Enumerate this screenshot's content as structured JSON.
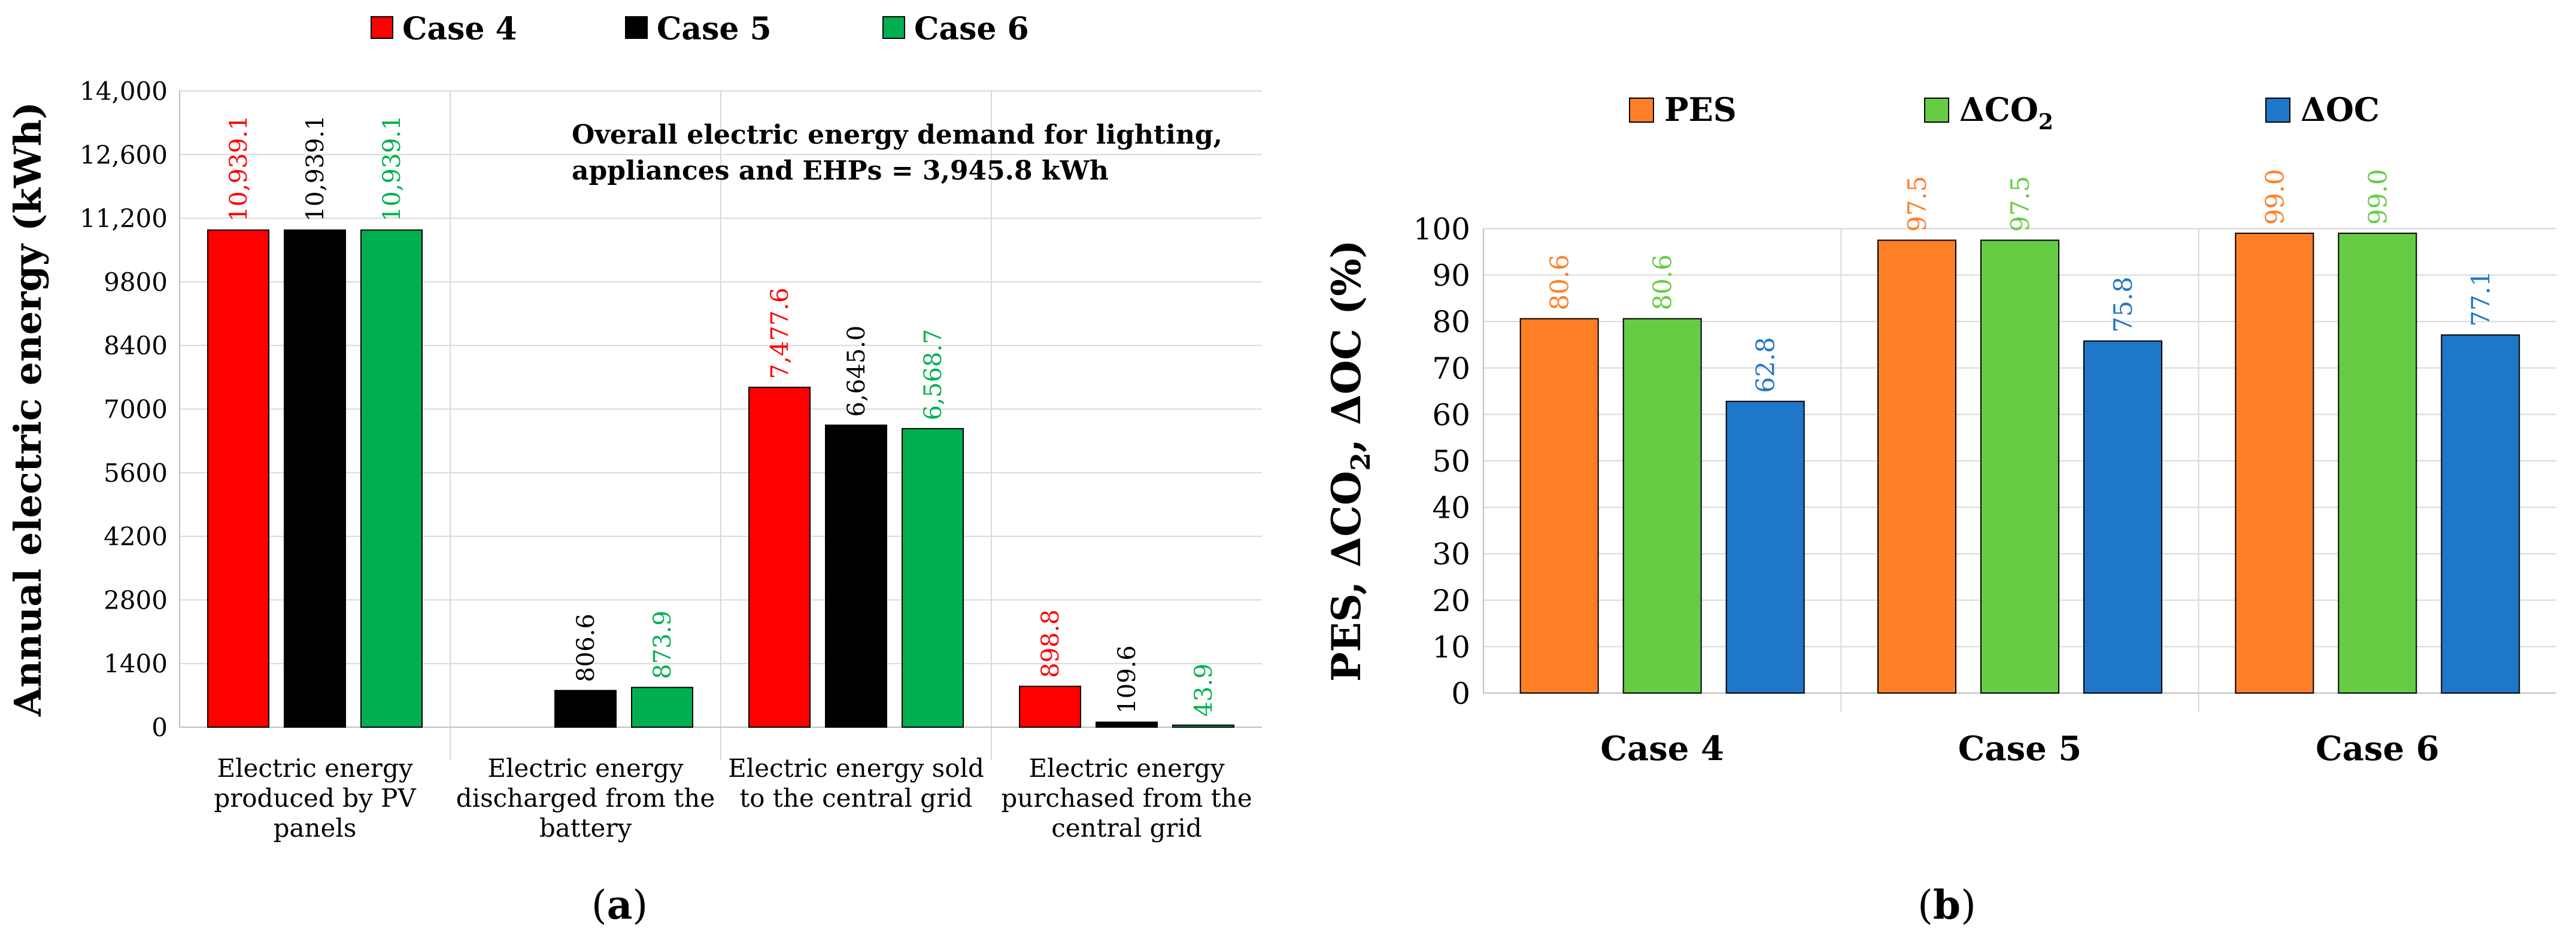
{
  "chart_data": [
    {
      "type": "bar",
      "panel_label": "a",
      "ylabel": "Annual electric energy (kWh)",
      "xlabel": "",
      "ylim": [
        0,
        14000
      ],
      "yticks": [
        "0",
        "1400",
        "2800",
        "4200",
        "5600",
        "7000",
        "8400",
        "9800",
        "11,200",
        "12,600",
        "14,000"
      ],
      "grid": true,
      "legend_position": "top",
      "categories": [
        [
          "Electric energy",
          "produced by PV",
          "panels"
        ],
        [
          "Electric energy",
          "discharged from the",
          "battery"
        ],
        [
          "Electric energy sold",
          "to the central grid"
        ],
        [
          "Electric energy",
          "purchased from the",
          "central grid"
        ]
      ],
      "series": [
        {
          "name": "Case 4",
          "color": "#ff0000",
          "values": [
            10939.1,
            0,
            7477.6,
            898.8
          ],
          "labels": [
            "10,939.1",
            "",
            "7,477.6",
            "898.8"
          ]
        },
        {
          "name": "Case 5",
          "color": "#000000",
          "values": [
            10939.1,
            806.6,
            6645.0,
            109.6
          ],
          "labels": [
            "10,939.1",
            "806.6",
            "6,645.0",
            "109.6"
          ]
        },
        {
          "name": "Case 6",
          "color": "#00b050",
          "values": [
            10939.1,
            873.9,
            6568.7,
            43.9
          ],
          "labels": [
            "10,939.1",
            "873.9",
            "6,568.7",
            "43.9"
          ]
        }
      ],
      "annotation": [
        "Overall electric energy demand for lighting,",
        "appliances and EHPs = 3,945.8 kWh"
      ]
    },
    {
      "type": "bar",
      "panel_label": "b",
      "ylabel": "PES, ΔCO2, ΔOC (%)",
      "xlabel": "",
      "ylim": [
        0,
        100
      ],
      "yticks": [
        "0",
        "10",
        "20",
        "30",
        "40",
        "50",
        "60",
        "70",
        "80",
        "90",
        "100"
      ],
      "grid": true,
      "legend_position": "top",
      "categories": [
        "Case 4",
        "Case 5",
        "Case 6"
      ],
      "series": [
        {
          "name": "PES",
          "color": "#ff7f27",
          "values": [
            80.6,
            97.5,
            99.0
          ],
          "labels": [
            "80.6",
            "97.5",
            "99.0"
          ]
        },
        {
          "name": "ΔCO2",
          "color": "#66cc44",
          "values": [
            80.6,
            97.5,
            99.0
          ],
          "labels": [
            "80.6",
            "97.5",
            "99.0"
          ]
        },
        {
          "name": "ΔOC",
          "color": "#1f77c9",
          "values": [
            62.8,
            75.8,
            77.1
          ],
          "labels": [
            "62.8",
            "75.8",
            "77.1"
          ]
        }
      ]
    }
  ]
}
